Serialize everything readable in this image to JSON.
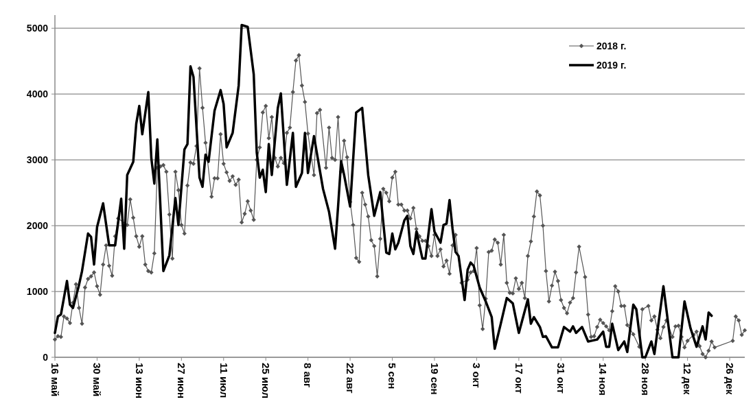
{
  "chart_data": {
    "type": "line",
    "xlim": [
      "--05-16",
      "--12-31"
    ],
    "ylim": [
      0,
      5200
    ],
    "xticks": [
      {
        "value": "--05-16",
        "label": "16 май"
      },
      {
        "value": "--05-30",
        "label": "30 май"
      },
      {
        "value": "--06-13",
        "label": "13 июн"
      },
      {
        "value": "--06-27",
        "label": "27 июн"
      },
      {
        "value": "--07-11",
        "label": "11 июл"
      },
      {
        "value": "--07-25",
        "label": "25 июл"
      },
      {
        "value": "--08-08",
        "label": "8 авг"
      },
      {
        "value": "--08-22",
        "label": "22 авг"
      },
      {
        "value": "--09-05",
        "label": "5 сен"
      },
      {
        "value": "--09-19",
        "label": "19 сен"
      },
      {
        "value": "--10-03",
        "label": "3 окт"
      },
      {
        "value": "--10-17",
        "label": "17 окт"
      },
      {
        "value": "--10-31",
        "label": "31 окт"
      },
      {
        "value": "--11-14",
        "label": "14 ноя"
      },
      {
        "value": "--11-28",
        "label": "28 ноя"
      },
      {
        "value": "--12-12",
        "label": "12 дек"
      },
      {
        "value": "--12-26",
        "label": "26 дек"
      }
    ],
    "yticks": [
      0,
      1000,
      2000,
      3000,
      4000,
      5000
    ],
    "grid": "y",
    "legend": "top right",
    "series": [
      {
        "name": "2018 г.",
        "color": "#555555",
        "marker": "diamond",
        "x": [
          "--05-16",
          "--05-17",
          "--05-18",
          "--05-19",
          "--05-20",
          "--05-21",
          "--05-22",
          "--05-23",
          "--05-24",
          "--05-25",
          "--05-26",
          "--05-27",
          "--05-28",
          "--05-29",
          "--05-30",
          "--05-31",
          "--06-01",
          "--06-02",
          "--06-03",
          "--06-04",
          "--06-05",
          "--06-06",
          "--06-09",
          "--06-10",
          "--06-11",
          "--06-12",
          "--06-13",
          "--06-14",
          "--06-15",
          "--06-16",
          "--06-17",
          "--06-18",
          "--06-19",
          "--06-20",
          "--06-21",
          "--06-22",
          "--06-23",
          "--06-24",
          "--06-25",
          "--06-26",
          "--06-27",
          "--06-28",
          "--06-29",
          "--06-30",
          "--07-01",
          "--07-02",
          "--07-03",
          "--07-04",
          "--07-05",
          "--07-07",
          "--07-08",
          "--07-09",
          "--07-10",
          "--07-11",
          "--07-12",
          "--07-13",
          "--07-14",
          "--07-15",
          "--07-16",
          "--07-17",
          "--07-18",
          "--07-19",
          "--07-20",
          "--07-21",
          "--07-22",
          "--07-23",
          "--07-24",
          "--07-25",
          "--07-26",
          "--07-27",
          "--07-28",
          "--07-29",
          "--07-30",
          "--07-31",
          "--08-01",
          "--08-02",
          "--08-03",
          "--08-04",
          "--08-05",
          "--08-06",
          "--08-07",
          "--08-08",
          "--08-10",
          "--08-11",
          "--08-12",
          "--08-14",
          "--08-15",
          "--08-16",
          "--08-17",
          "--08-18",
          "--08-19",
          "--08-20",
          "--08-21",
          "--08-22",
          "--08-23",
          "--08-24",
          "--08-25",
          "--08-26",
          "--08-27",
          "--08-28",
          "--08-29",
          "--08-30",
          "--08-31",
          "--09-01",
          "--09-02",
          "--09-03",
          "--09-04",
          "--09-05",
          "--09-06",
          "--09-07",
          "--09-08",
          "--09-09",
          "--09-10",
          "--09-11",
          "--09-12",
          "--09-13",
          "--09-14",
          "--09-15",
          "--09-16",
          "--09-17",
          "--09-18",
          "--09-19",
          "--09-20",
          "--09-21",
          "--09-22",
          "--09-23",
          "--09-24",
          "--09-25",
          "--09-26",
          "--09-28",
          "--09-30",
          "--10-01",
          "--10-02",
          "--10-03",
          "--10-04",
          "--10-05",
          "--10-06",
          "--10-07",
          "--10-08",
          "--10-09",
          "--10-10",
          "--10-11",
          "--10-12",
          "--10-13",
          "--10-14",
          "--10-15",
          "--10-16",
          "--10-17",
          "--10-18",
          "--10-19",
          "--10-20",
          "--10-21",
          "--10-22",
          "--10-23",
          "--10-24",
          "--10-25",
          "--10-26",
          "--10-27",
          "--10-28",
          "--10-29",
          "--10-30",
          "--10-31",
          "--11-01",
          "--11-02",
          "--11-03",
          "--11-04",
          "--11-05",
          "--11-06",
          "--11-08",
          "--11-09",
          "--11-10",
          "--11-11",
          "--11-12",
          "--11-13",
          "--11-14",
          "--11-15",
          "--11-16",
          "--11-17",
          "--11-18",
          "--11-19",
          "--11-20",
          "--11-21",
          "--11-22",
          "--11-24",
          "--11-26",
          "--11-27",
          "--11-29",
          "--11-30",
          "--12-01",
          "--12-02",
          "--12-03",
          "--12-04",
          "--12-05",
          "--12-07",
          "--12-08",
          "--12-09",
          "--12-10",
          "--12-11",
          "--12-12",
          "--12-14",
          "--12-15",
          "--12-16",
          "--12-17",
          "--12-18",
          "--12-19",
          "--12-20",
          "--12-21",
          "--12-27",
          "--12-28",
          "--12-29",
          "--12-30",
          "--12-31"
        ],
        "values": [
          270,
          320,
          310,
          620,
          590,
          520,
          830,
          1110,
          750,
          510,
          1060,
          1190,
          1230,
          1290,
          1080,
          950,
          1410,
          1700,
          1390,
          1240,
          1840,
          2110,
          2010,
          2400,
          2120,
          1840,
          1680,
          1840,
          1410,
          1310,
          1290,
          1580,
          2880,
          2900,
          2920,
          2820,
          2170,
          1500,
          2820,
          2540,
          2010,
          1880,
          2610,
          2960,
          2940,
          3210,
          4390,
          3790,
          3260,
          2440,
          2720,
          2720,
          3390,
          2940,
          2810,
          2680,
          2750,
          2620,
          2700,
          2050,
          2180,
          2370,
          2230,
          2090,
          3000,
          3190,
          3720,
          3820,
          3330,
          3650,
          3030,
          2900,
          3030,
          2950,
          3410,
          3490,
          4030,
          4510,
          4590,
          4130,
          3880,
          3400,
          2770,
          3710,
          3760,
          2880,
          3490,
          3030,
          3000,
          3650,
          2820,
          3290,
          3040,
          2360,
          2010,
          1510,
          1450,
          2500,
          2320,
          2140,
          1780,
          1690,
          1230,
          1800,
          2560,
          2500,
          2370,
          2730,
          2820,
          2320,
          2320,
          2230,
          2230,
          2110,
          2270,
          1950,
          1840,
          1770,
          1770,
          1690,
          1540,
          1860,
          1540,
          1640,
          1380,
          1470,
          1270,
          1700,
          1860,
          1130,
          1180,
          1290,
          1310,
          1660,
          790,
          430,
          890,
          1600,
          1620,
          1790,
          1740,
          1410,
          1860,
          1130,
          980,
          970,
          1200,
          1040,
          1130,
          900,
          1540,
          1760,
          2140,
          2520,
          2460,
          2000,
          1310,
          850,
          1090,
          1300,
          1160,
          870,
          750,
          670,
          830,
          900,
          1290,
          1680,
          1220,
          650,
          310,
          320,
          460,
          570,
          520,
          470,
          410,
          700,
          1080,
          1000,
          780,
          780,
          490,
          350,
          160,
          730,
          780,
          560,
          620,
          420,
          290,
          460,
          560,
          310,
          470,
          480,
          310,
          150,
          250,
          340,
          390,
          170,
          50,
          0,
          100,
          240,
          150,
          250,
          620,
          560,
          340,
          410
        ]
      },
      {
        "name": "2019 г.",
        "color": "#000000",
        "marker": "none",
        "x": [
          "--05-16",
          "--05-17",
          "--05-18",
          "--05-20",
          "--05-21",
          "--05-22",
          "--05-24",
          "--05-25",
          "--05-27",
          "--05-28",
          "--05-29",
          "--05-30",
          "--06-01",
          "--06-03",
          "--06-05",
          "--06-07",
          "--06-08",
          "--06-09",
          "--06-11",
          "--06-12",
          "--06-13",
          "--06-14",
          "--06-16",
          "--06-17",
          "--06-18",
          "--06-19",
          "--06-21",
          "--06-23",
          "--06-25",
          "--06-26",
          "--06-28",
          "--06-29",
          "--06-30",
          "--07-01",
          "--07-03",
          "--07-04",
          "--07-05",
          "--07-06",
          "--07-08",
          "--07-10",
          "--07-11",
          "--07-12",
          "--07-14",
          "--07-16",
          "--07-17",
          "--07-19",
          "--07-21",
          "--07-22",
          "--07-23",
          "--07-24",
          "--07-25",
          "--07-26",
          "--07-27",
          "--07-29",
          "--07-30",
          "--08-01",
          "--08-03",
          "--08-04",
          "--08-06",
          "--08-07",
          "--08-08",
          "--08-10",
          "--08-13",
          "--08-15",
          "--08-17",
          "--08-18",
          "--08-19",
          "--08-20",
          "--08-22",
          "--08-24",
          "--08-26",
          "--08-28",
          "--08-30",
          "--09-01",
          "--09-03",
          "--09-04",
          "--09-05",
          "--09-06",
          "--09-07",
          "--09-09",
          "--09-10",
          "--09-11",
          "--09-12",
          "--09-13",
          "--09-15",
          "--09-16",
          "--09-18",
          "--09-19",
          "--09-21",
          "--09-22",
          "--09-23",
          "--09-24",
          "--09-25",
          "--09-26",
          "--09-27",
          "--09-29",
          "--09-30",
          "--10-01",
          "--10-02",
          "--10-04",
          "--10-06",
          "--10-08",
          "--10-09",
          "--10-11",
          "--10-13",
          "--10-15",
          "--10-17",
          "--10-18",
          "--10-20",
          "--10-21",
          "--10-22",
          "--10-24",
          "--10-25",
          "--10-26",
          "--10-28",
          "--10-30",
          "--11-01",
          "--11-03",
          "--11-04",
          "--11-05",
          "--11-07",
          "--11-09",
          "--11-12",
          "--11-14",
          "--11-15",
          "--11-16",
          "--11-17",
          "--11-19",
          "--11-21",
          "--11-22",
          "--11-24",
          "--11-25",
          "--11-27",
          "--11-28",
          "--11-30",
          "--12-01",
          "--12-04",
          "--12-07",
          "--12-09",
          "--12-11",
          "--12-13",
          "--12-15",
          "--12-17",
          "--12-18",
          "--12-19",
          "--12-20"
        ],
        "values": [
          370,
          620,
          650,
          1160,
          800,
          750,
          1100,
          1310,
          1880,
          1830,
          1410,
          1980,
          2340,
          1700,
          1700,
          2410,
          1650,
          2770,
          2970,
          3550,
          3820,
          3390,
          4030,
          3030,
          2640,
          3310,
          1310,
          1550,
          2420,
          2010,
          3160,
          3240,
          4420,
          4260,
          2730,
          2590,
          3080,
          2970,
          3750,
          4060,
          3850,
          3190,
          3410,
          4130,
          5050,
          5020,
          4300,
          3110,
          2730,
          2850,
          2510,
          3240,
          2770,
          3790,
          4010,
          2620,
          3410,
          2590,
          2800,
          3410,
          2800,
          3360,
          2560,
          2210,
          1650,
          2290,
          2980,
          2770,
          2290,
          3720,
          3790,
          2770,
          2150,
          2510,
          1590,
          1570,
          1880,
          1640,
          1740,
          2080,
          2150,
          1690,
          1570,
          1910,
          1500,
          1500,
          2250,
          1910,
          1740,
          2010,
          2030,
          2390,
          1950,
          1600,
          1540,
          870,
          1330,
          1440,
          1390,
          1060,
          850,
          610,
          130,
          510,
          900,
          820,
          370,
          540,
          880,
          510,
          610,
          460,
          310,
          320,
          150,
          150,
          460,
          390,
          470,
          370,
          460,
          240,
          270,
          390,
          160,
          160,
          510,
          110,
          240,
          80,
          800,
          730,
          0,
          0,
          240,
          50,
          1080,
          0,
          0,
          850,
          440,
          160,
          470,
          270,
          680,
          630
        ]
      }
    ]
  }
}
